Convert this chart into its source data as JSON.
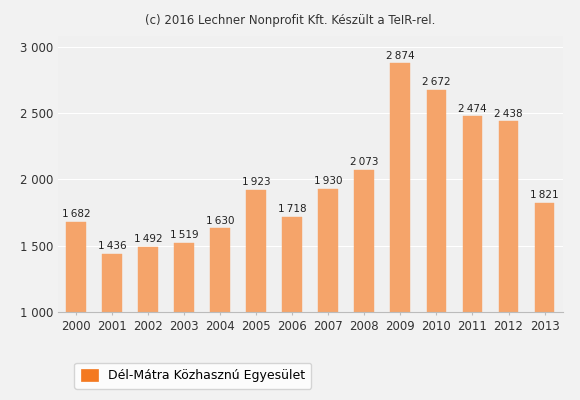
{
  "title": "(c) 2016 Lechner Nonprofit Kft. Készült a TeIR-rel.",
  "years": [
    2000,
    2001,
    2002,
    2003,
    2004,
    2005,
    2006,
    2007,
    2008,
    2009,
    2010,
    2011,
    2012,
    2013
  ],
  "values": [
    1682,
    1436,
    1492,
    1519,
    1630,
    1923,
    1718,
    1930,
    2073,
    2874,
    2672,
    2474,
    2438,
    1821
  ],
  "bar_color": "#f5a46a",
  "bar_edge_color": "#f5a46a",
  "background_color": "#f2f2f2",
  "plot_bg_color": "#f0f0f0",
  "grid_color": "#ffffff",
  "ylim": [
    1000,
    3000
  ],
  "yticks": [
    1000,
    1500,
    2000,
    2500,
    3000
  ],
  "ytick_labels": [
    "1 000",
    "1 500",
    "2 000",
    "2 500",
    "3 000"
  ],
  "legend_label": "Dél-Mátra Közhasznú Egyesület",
  "legend_color": "#f47920",
  "title_fontsize": 8.5,
  "label_fontsize": 7.5,
  "tick_fontsize": 8.5,
  "legend_fontsize": 9
}
